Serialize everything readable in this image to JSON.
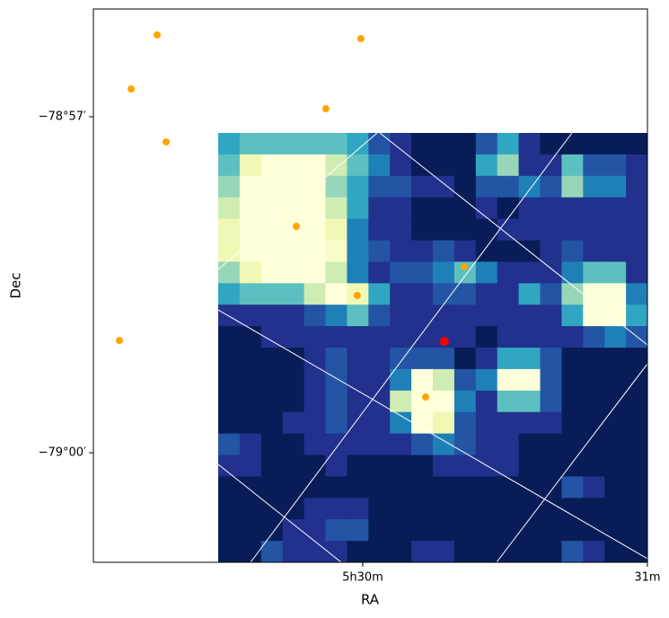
{
  "chart_data": {
    "type": "image",
    "xlabel": "RA",
    "ylabel": "Dec",
    "colormap": "YlGnBu_r",
    "image": [
      [
        5,
        6,
        6,
        6,
        6,
        6,
        5,
        3,
        2,
        1,
        1,
        1,
        3,
        5,
        2,
        1,
        1,
        1,
        1,
        1
      ],
      [
        6,
        9,
        10,
        10,
        10,
        8,
        6,
        4,
        2,
        1,
        1,
        1,
        5,
        7,
        2,
        2,
        6,
        3,
        3,
        2
      ],
      [
        7,
        10,
        10,
        10,
        10,
        7,
        5,
        3,
        3,
        2,
        2,
        1,
        3,
        3,
        4,
        3,
        7,
        4,
        4,
        2
      ],
      [
        8,
        10,
        10,
        10,
        10,
        8,
        5,
        2,
        2,
        1,
        1,
        1,
        2,
        1,
        2,
        2,
        2,
        2,
        2,
        2
      ],
      [
        9,
        10,
        10,
        10,
        10,
        9,
        4,
        2,
        2,
        1,
        1,
        1,
        1,
        2,
        2,
        2,
        2,
        2,
        2,
        2
      ],
      [
        9,
        10,
        10,
        10,
        10,
        9.5,
        4,
        3,
        2,
        2,
        3,
        2,
        1,
        1,
        1,
        2,
        3,
        2,
        2,
        2
      ],
      [
        7,
        9,
        10,
        10,
        10,
        8,
        4,
        2,
        3,
        3,
        4,
        6,
        4,
        2,
        2,
        2,
        4,
        6,
        6,
        2
      ],
      [
        5,
        6,
        6,
        6,
        8,
        10,
        9,
        5,
        2,
        2,
        3,
        3,
        2,
        2,
        5,
        3,
        7,
        10,
        10,
        4
      ],
      [
        2,
        2,
        2,
        2,
        3,
        4,
        6,
        3,
        2,
        2,
        2,
        2,
        2,
        2,
        2,
        2,
        5,
        10,
        10,
        5
      ],
      [
        1,
        1,
        2,
        2,
        2,
        2,
        2,
        2,
        2,
        2,
        2,
        2,
        1,
        2,
        2,
        2,
        2,
        3,
        4,
        3
      ],
      [
        1,
        1,
        1,
        1,
        2,
        3,
        2,
        2,
        3,
        3,
        3,
        1,
        2,
        5,
        5,
        3,
        1,
        1,
        1,
        1
      ],
      [
        1,
        1,
        1,
        1,
        2,
        3,
        2,
        2,
        4,
        10,
        8,
        3,
        4,
        10,
        10,
        3,
        1,
        1,
        1,
        1
      ],
      [
        1,
        1,
        1,
        1,
        2,
        3,
        2,
        2,
        8,
        10,
        10,
        4,
        2,
        6,
        6,
        3,
        1,
        1,
        1,
        1
      ],
      [
        1,
        1,
        1,
        2,
        2,
        3,
        2,
        2,
        4,
        10,
        9,
        3,
        2,
        2,
        2,
        2,
        1,
        1,
        1,
        1
      ],
      [
        3,
        2,
        1,
        1,
        2,
        2,
        2,
        2,
        2,
        3,
        4,
        3,
        2,
        2,
        1,
        1,
        1,
        1,
        1,
        1
      ],
      [
        2,
        2,
        1,
        1,
        1,
        2,
        1,
        1,
        1,
        1,
        2,
        2,
        2,
        2,
        1,
        1,
        1,
        1,
        1,
        1
      ],
      [
        1,
        1,
        1,
        1,
        1,
        1,
        1,
        1,
        1,
        1,
        1,
        1,
        1,
        1,
        1,
        1,
        3,
        2,
        1,
        1
      ],
      [
        1,
        1,
        1,
        1,
        2,
        2,
        2,
        1,
        1,
        1,
        1,
        1,
        1,
        1,
        1,
        1,
        1,
        1,
        1,
        1
      ],
      [
        1,
        1,
        1,
        2,
        2,
        3,
        3,
        1,
        1,
        1,
        1,
        1,
        1,
        1,
        1,
        1,
        1,
        1,
        1,
        1
      ],
      [
        1,
        1,
        3,
        2,
        2,
        2,
        1,
        1,
        1,
        2,
        2,
        1,
        1,
        1,
        1,
        1,
        3,
        2,
        1,
        1
      ]
    ],
    "series": [
      {
        "color": "#ffa500",
        "x": [
          5.48796,
          5.49989,
          5.48644,
          5.49784,
          5.48849,
          5.49611,
          5.50594,
          5.49968,
          5.48575,
          5.50368
        ],
        "y": [
          -78.93783,
          -78.93837,
          -78.94586,
          -78.9488,
          -78.95374,
          -78.96631,
          -78.97233,
          -78.9766,
          -78.98329,
          -78.99171
        ]
      },
      {
        "color": "#ff0000",
        "x": [
          5.50478
        ],
        "y": [
          -78.98342
        ]
      }
    ],
    "xlim": [
      5.48423,
      5.51667
    ],
    "ylim": [
      -79.0163,
      -78.93396
    ],
    "xticks": [
      {
        "value": 5.5,
        "label": "5h30m"
      },
      {
        "value": 5.516667,
        "label": "31m"
      }
    ],
    "yticks": [
      {
        "value": -78.95,
        "label": "−78°57′"
      },
      {
        "value": -79.0,
        "label": "−79°00′"
      }
    ]
  }
}
